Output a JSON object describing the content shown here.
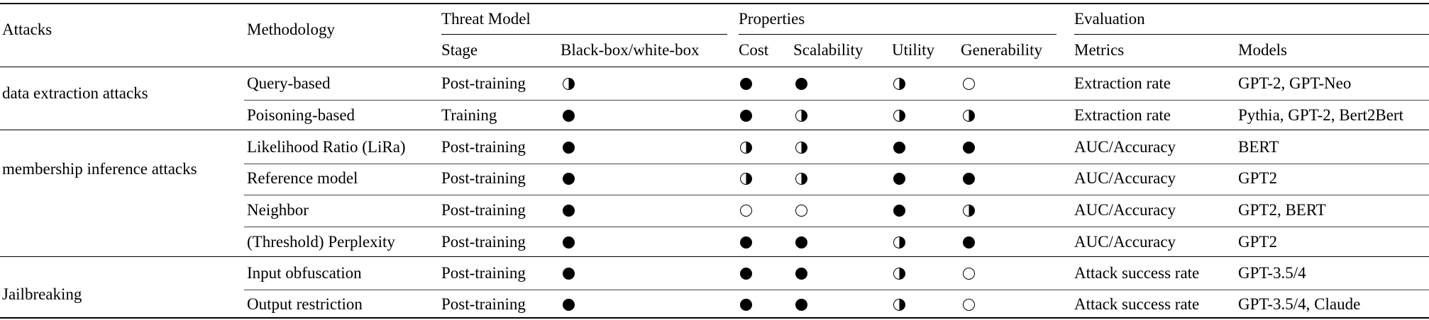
{
  "headers": {
    "attacks": "Attacks",
    "methodology": "Methodology",
    "threat_model": "Threat Model",
    "properties": "Properties",
    "evaluation": "Evaluation",
    "stage": "Stage",
    "box": "Black-box/white-box",
    "cost": "Cost",
    "scalability": "Scalability",
    "utility": "Utility",
    "generability": "Generability",
    "metrics": "Metrics",
    "models": "Models"
  },
  "legend": {
    "full": "filled-circle",
    "half": "half-filled-circle",
    "empty": "empty-circle"
  },
  "groups": [
    {
      "name": "data extraction attacks",
      "rows": [
        {
          "methodology": "Query-based",
          "stage": "Post-training",
          "box": "half",
          "cost": "full",
          "scalability": "full",
          "utility": "half",
          "generability": "empty",
          "metrics": "Extraction rate",
          "models": "GPT-2, GPT-Neo"
        },
        {
          "methodology": "Poisoning-based",
          "stage": "Training",
          "box": "full",
          "cost": "full",
          "scalability": "half",
          "utility": "half",
          "generability": "half",
          "metrics": "Extraction rate",
          "models": "Pythia, GPT-2, Bert2Bert"
        }
      ]
    },
    {
      "name": "membership inference attacks",
      "rows": [
        {
          "methodology": "Likelihood Ratio (LiRa)",
          "stage": "Post-training",
          "box": "full",
          "cost": "half",
          "scalability": "half",
          "utility": "full",
          "generability": "full",
          "metrics": "AUC/Accuracy",
          "models": "BERT"
        },
        {
          "methodology": "Reference model",
          "stage": "Post-training",
          "box": "full",
          "cost": "half",
          "scalability": "half",
          "utility": "full",
          "generability": "full",
          "metrics": "AUC/Accuracy",
          "models": "GPT2"
        },
        {
          "methodology": "Neighbor",
          "stage": "Post-training",
          "box": "full",
          "cost": "empty",
          "scalability": "empty",
          "utility": "full",
          "generability": "half",
          "metrics": "AUC/Accuracy",
          "models": "GPT2, BERT"
        },
        {
          "methodology": "(Threshold) Perplexity",
          "stage": "Post-training",
          "box": "full",
          "cost": "full",
          "scalability": "full",
          "utility": "half",
          "generability": "full",
          "metrics": "AUC/Accuracy",
          "models": "GPT2"
        }
      ]
    },
    {
      "name": "Jailbreaking",
      "rows": [
        {
          "methodology": "Input obfuscation",
          "stage": "Post-training",
          "box": "full",
          "cost": "full",
          "scalability": "full",
          "utility": "half",
          "generability": "empty",
          "metrics": "Attack success rate",
          "models": "GPT-3.5/4"
        },
        {
          "methodology": "Output restriction",
          "stage": "Post-training",
          "box": "full",
          "cost": "full",
          "scalability": "full",
          "utility": "half",
          "generability": "empty",
          "metrics": "Attack success rate",
          "models": "GPT-3.5/4, Claude"
        }
      ]
    }
  ]
}
